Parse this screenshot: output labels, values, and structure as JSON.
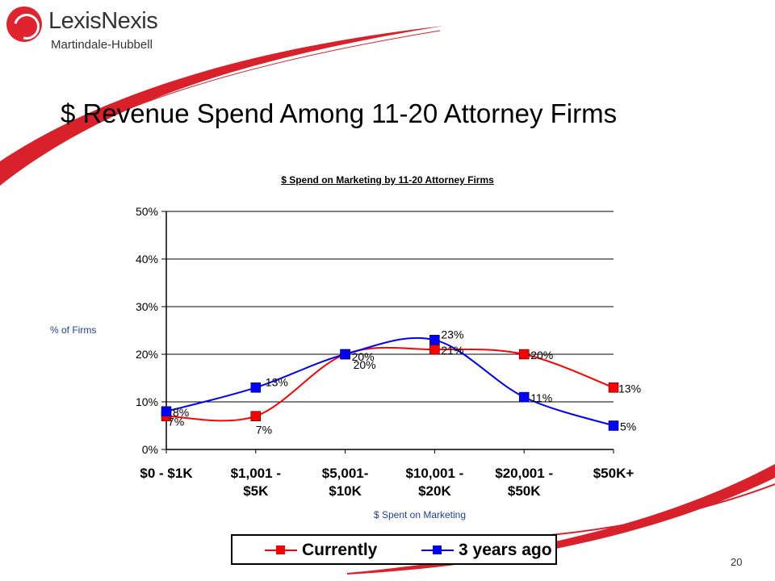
{
  "brand": {
    "name": "LexisNexis",
    "sub": "Martindale-Hubbell"
  },
  "title": "$ Revenue Spend Among 11-20 Attorney Firms",
  "page_number": "20",
  "colors": {
    "currently": "#ff0000",
    "three_years_ago": "#0000ff",
    "swoosh": "#d8212b"
  },
  "chart_data": {
    "type": "line",
    "title": "$ Spend on Marketing by 11-20 Attorney Firms",
    "xlabel": "$ Spent on Marketing",
    "ylabel": "% of Firms",
    "categories": [
      "$0 - $1K",
      "$1,001 - $5K",
      "$5,001- $10K",
      "$10,001 - $20K",
      "$20,001 - $50K",
      "$50K+"
    ],
    "category_lines": [
      [
        "$0 - $1K"
      ],
      [
        "$1,001 -",
        "$5K"
      ],
      [
        "$5,001-",
        "$10K"
      ],
      [
        "$10,001 -",
        "$20K"
      ],
      [
        "$20,001 -",
        "$50K"
      ],
      [
        "$50K+"
      ]
    ],
    "ylim": [
      0,
      50
    ],
    "yticks": [
      0,
      10,
      20,
      30,
      40,
      50
    ],
    "ytick_labels": [
      "0%",
      "10%",
      "20%",
      "30%",
      "40%",
      "50%"
    ],
    "grid": true,
    "legend_position": "bottom",
    "series": [
      {
        "name": "Currently",
        "values": [
          7,
          7,
          20,
          21,
          20,
          13
        ],
        "labels": [
          "7%",
          "7%",
          "20%",
          "21%",
          "20%",
          "13%"
        ]
      },
      {
        "name": "3 years ago",
        "values": [
          8,
          13,
          20,
          23,
          11,
          5
        ],
        "labels": [
          "8%",
          "13%",
          "20%",
          "23%",
          "11%",
          "5%"
        ]
      }
    ]
  }
}
